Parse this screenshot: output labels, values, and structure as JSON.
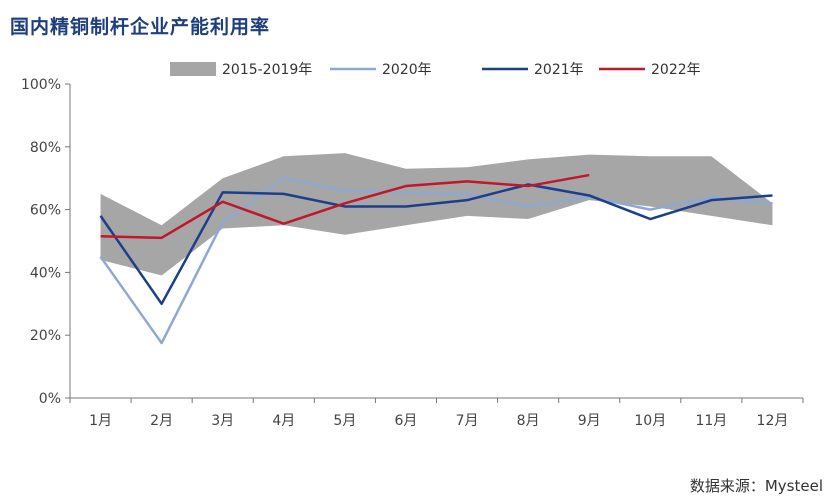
{
  "title": "国内精铜制杆企业产能利用率",
  "source": "数据来源：Mysteel",
  "colors": {
    "band": "#a6a6a6",
    "s2020": "#8ea9d0",
    "s2021": "#1b3f8b",
    "s2022": "#c0172b",
    "axis": "#777777"
  },
  "chart_data": {
    "type": "line",
    "title": "国内精铜制杆企业产能利用率",
    "xlabel": "",
    "ylabel": "",
    "categories": [
      "1月",
      "2月",
      "3月",
      "4月",
      "5月",
      "6月",
      "7月",
      "8月",
      "9月",
      "10月",
      "11月",
      "12月"
    ],
    "ylim": [
      0,
      100
    ],
    "yticks": [
      "0%",
      "20%",
      "40%",
      "60%",
      "80%",
      "100%"
    ],
    "grid": false,
    "legend_position": "top",
    "band": {
      "name": "2015-2019年",
      "min": [
        44,
        39,
        54,
        55,
        52,
        55,
        58,
        57,
        63,
        61,
        58,
        55
      ],
      "max": [
        65,
        55,
        70,
        77,
        78,
        73,
        73.5,
        76,
        77.5,
        77,
        77,
        62
      ]
    },
    "series": [
      {
        "name": "2020年",
        "values": [
          45,
          17.5,
          56,
          70,
          66,
          65.5,
          65,
          61,
          64,
          60,
          64,
          62
        ]
      },
      {
        "name": "2021年",
        "values": [
          58,
          30,
          65.5,
          65,
          61,
          61,
          63,
          68,
          64.5,
          57,
          63,
          64.5
        ]
      },
      {
        "name": "2022年",
        "values": [
          51.5,
          51,
          62.5,
          55.5,
          62,
          67.5,
          69,
          67.5,
          71,
          null,
          null,
          null
        ]
      }
    ]
  }
}
